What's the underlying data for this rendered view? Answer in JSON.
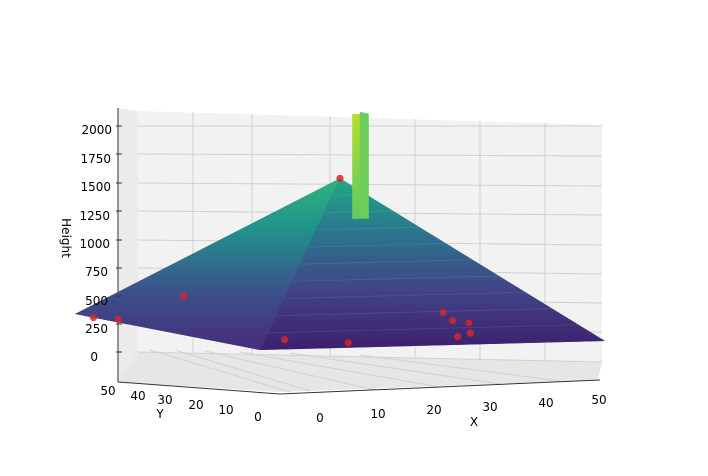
{
  "chart_data": {
    "type": "surface3d",
    "xlabel": "X",
    "ylabel": "Y",
    "zlabel": "Height",
    "xlim": [
      0,
      50
    ],
    "ylim": [
      0,
      50
    ],
    "zlim": [
      0,
      2000
    ],
    "x_ticks": [
      "0",
      "10",
      "20",
      "30",
      "40",
      "50"
    ],
    "y_ticks": [
      "0",
      "10",
      "20",
      "30",
      "40",
      "50"
    ],
    "z_ticks": [
      "0",
      "250",
      "500",
      "750",
      "1000",
      "1250",
      "1500",
      "1750",
      "2000"
    ],
    "grid": true,
    "colormap": "viridis",
    "surface": {
      "shape": "pyramid",
      "base_height": 0,
      "apex": {
        "x": 25,
        "y": 25,
        "z": 1420
      },
      "spike": {
        "x": 30,
        "y": 30,
        "z_from": 1000,
        "z_to": 2000
      }
    },
    "scatter_series": {
      "color": "#d62728",
      "points": [
        {
          "x": 25,
          "y": 25,
          "z": 1420
        },
        {
          "x": 0,
          "y": 45,
          "z": 0
        },
        {
          "x": 2,
          "y": 42,
          "z": 0
        },
        {
          "x": 5,
          "y": 30,
          "z": 300
        },
        {
          "x": 10,
          "y": 12,
          "z": 0
        },
        {
          "x": 16,
          "y": 6,
          "z": 0
        },
        {
          "x": 34,
          "y": 10,
          "z": 0
        },
        {
          "x": 38,
          "y": 14,
          "z": 0
        },
        {
          "x": 41,
          "y": 20,
          "z": 50
        },
        {
          "x": 44,
          "y": 30,
          "z": 0
        },
        {
          "x": 48,
          "y": 40,
          "z": 0
        }
      ]
    }
  }
}
